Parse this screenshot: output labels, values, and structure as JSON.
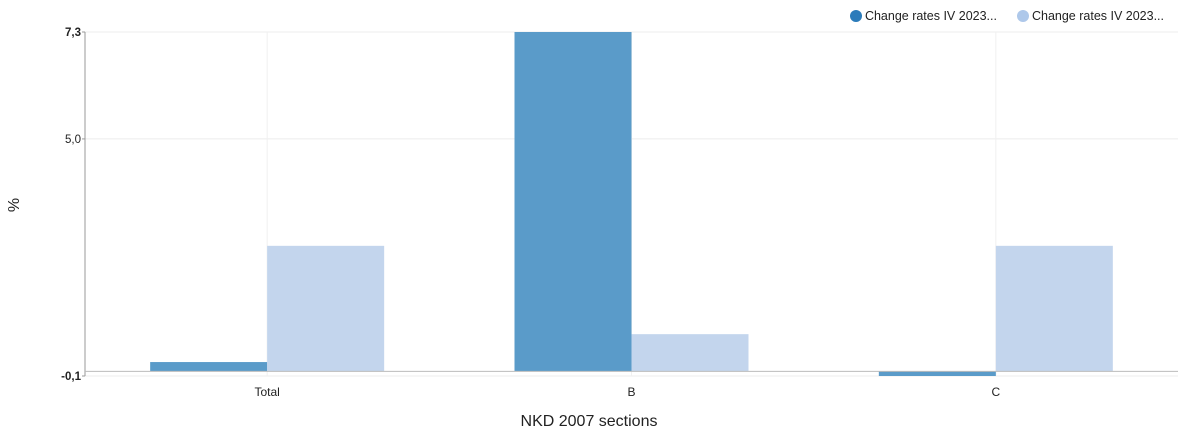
{
  "chart_data": {
    "type": "bar",
    "categories": [
      "Total",
      "B",
      "C"
    ],
    "series": [
      {
        "name": "Change rates IV 2023...",
        "color": "#5a9bc9",
        "values": [
          0.2,
          7.3,
          -0.1
        ]
      },
      {
        "name": "Change rates IV 2023...",
        "color": "#c3d5ed",
        "values": [
          2.7,
          0.8,
          2.7
        ]
      }
    ],
    "xlabel": "NKD 2007 sections",
    "ylabel": "%",
    "ylim": [
      -0.1,
      7.3
    ],
    "yticks": [
      {
        "value": -0.1,
        "label": "-0,1",
        "bold": true
      },
      {
        "value": 5.0,
        "label": "5,0",
        "bold": false
      },
      {
        "value": 7.3,
        "label": "7,3",
        "bold": true
      }
    ],
    "grid": true,
    "legend_position": "top-right"
  }
}
